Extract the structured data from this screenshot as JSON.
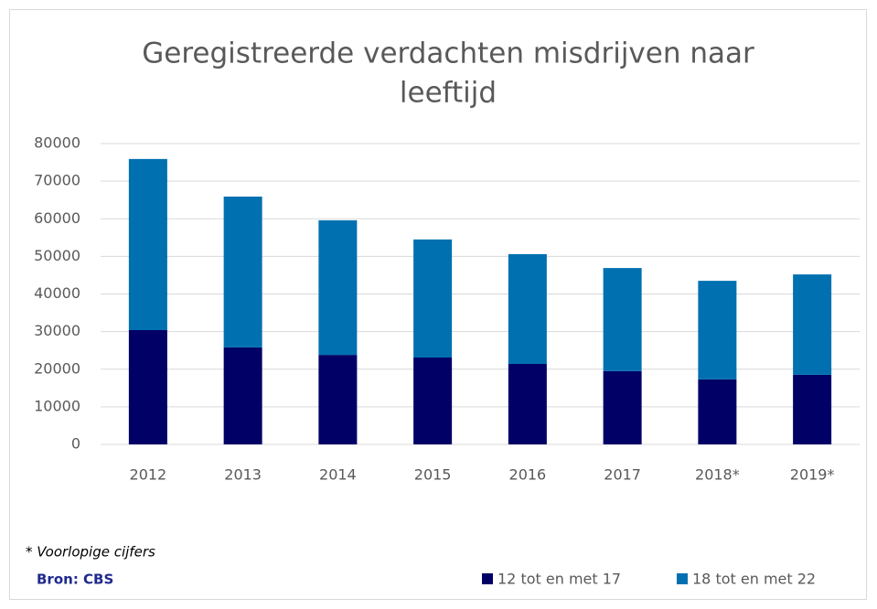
{
  "chart_data": {
    "type": "bar",
    "stacked": true,
    "title": "Geregistreerde verdachten misdrijven naar leeftijd",
    "categories": [
      "2012",
      "2013",
      "2014",
      "2015",
      "2016",
      "2017",
      "2018*",
      "2019*"
    ],
    "series": [
      {
        "name": "12 tot en met 17",
        "color": "#000066",
        "values": [
          30400,
          25800,
          23800,
          23100,
          21400,
          19500,
          17300,
          18500
        ]
      },
      {
        "name": "18 tot en met 22",
        "color": "#0070b0",
        "values": [
          45500,
          40100,
          35800,
          31400,
          29200,
          27400,
          26200,
          26700
        ]
      }
    ],
    "ylim": [
      0,
      80000
    ],
    "yticks": [
      0,
      10000,
      20000,
      30000,
      40000,
      50000,
      60000,
      70000,
      80000
    ],
    "grid": true,
    "legend": "bottom-right",
    "annotation": "* Voorlopige cijfers",
    "source": "Bron: CBS"
  }
}
